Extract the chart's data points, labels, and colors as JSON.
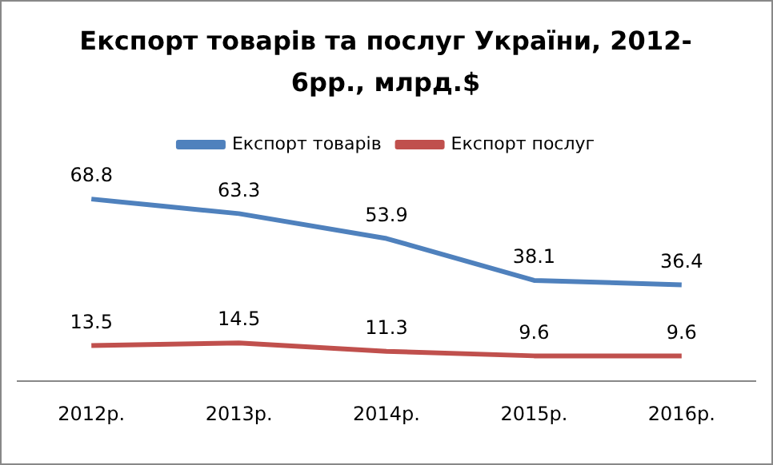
{
  "chart_data": {
    "type": "line",
    "title": "Експорт товарів та послуг України, 2012-6рр., млрд.$",
    "categories": [
      "2012р.",
      "2013р.",
      "2014р.",
      "2015р.",
      "2016р."
    ],
    "series": [
      {
        "name": "Експорт товарів",
        "color": "#4f81bd",
        "values": [
          68.8,
          63.3,
          53.9,
          38.1,
          36.4
        ]
      },
      {
        "name": "Експорт послуг",
        "color": "#c0504d",
        "values": [
          13.5,
          14.5,
          11.3,
          9.6,
          9.6
        ]
      }
    ],
    "data_labels": true,
    "legend": "top",
    "grid": false,
    "marker": "none",
    "line_style": "solid"
  }
}
